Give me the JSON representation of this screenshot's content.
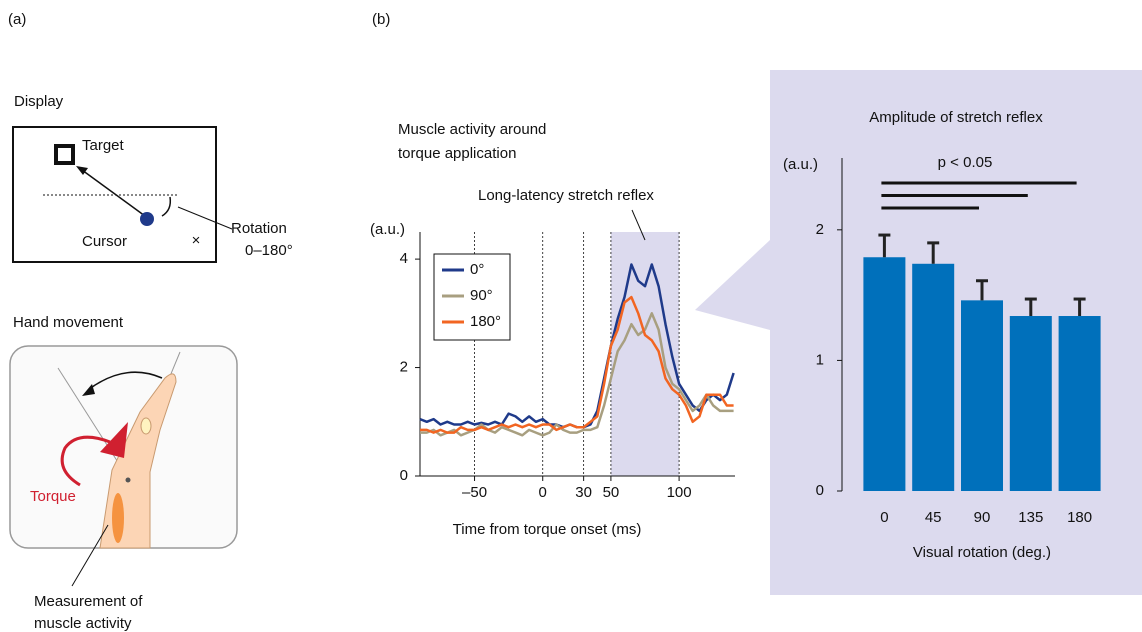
{
  "panel_labels": [
    "(a)",
    "(b)"
  ],
  "display": {
    "title": "Display",
    "target": "Target",
    "cursor": "Cursor",
    "rotation": [
      "Rotation",
      "0–180°"
    ]
  },
  "hand": {
    "title": "Hand movement",
    "torque": "Torque",
    "measurement": [
      "Measurement of",
      "muscle activity"
    ]
  },
  "chart_data": [
    {
      "type": "line",
      "title": [
        "Muscle activity around",
        "torque application"
      ],
      "annotation": "Long-latency stretch reflex",
      "highlight_range": [
        50,
        100
      ],
      "y_label": "(a.u.)",
      "x_label": "Time from torque onset (ms)",
      "xlim": [
        -90,
        141
      ],
      "ylim": [
        0,
        4.5
      ],
      "xticks": [
        {
          "value": -50,
          "label": "–50"
        },
        0,
        30,
        50,
        100
      ],
      "yticks": [
        0,
        2,
        4
      ],
      "vertical_grid": true,
      "legend": "upper left",
      "x": [
        -90,
        -85,
        -80,
        -75,
        -70,
        -65,
        -60,
        -55,
        -50,
        -45,
        -40,
        -35,
        -30,
        -25,
        -20,
        -15,
        -10,
        -5,
        0,
        5,
        10,
        15,
        20,
        25,
        30,
        35,
        40,
        45,
        50,
        55,
        60,
        65,
        70,
        75,
        80,
        85,
        90,
        95,
        100,
        105,
        110,
        115,
        120,
        125,
        130,
        135,
        140
      ],
      "series": [
        {
          "name": "0°",
          "color": "#1f3a8a",
          "values": [
            1.05,
            1.0,
            1.05,
            0.95,
            1.0,
            0.95,
            0.95,
            1.0,
            0.95,
            0.98,
            0.95,
            1.0,
            0.95,
            1.15,
            1.1,
            1.0,
            1.1,
            1.0,
            1.05,
            0.95,
            0.95,
            0.9,
            0.95,
            0.9,
            0.9,
            0.95,
            1.2,
            1.8,
            2.4,
            2.9,
            3.3,
            3.9,
            3.6,
            3.5,
            3.9,
            3.5,
            2.8,
            2.2,
            1.7,
            1.5,
            1.3,
            1.2,
            1.4,
            1.5,
            1.4,
            1.5,
            1.9
          ]
        },
        {
          "name": "90°",
          "color": "#a89f80",
          "values": [
            0.8,
            0.8,
            0.85,
            0.75,
            0.8,
            0.85,
            0.75,
            0.8,
            0.85,
            0.95,
            0.85,
            0.8,
            0.9,
            0.85,
            0.8,
            0.75,
            0.85,
            0.8,
            0.75,
            0.8,
            0.95,
            0.85,
            0.8,
            0.8,
            0.85,
            0.85,
            0.9,
            1.3,
            1.8,
            2.3,
            2.5,
            2.8,
            2.6,
            2.7,
            3.0,
            2.7,
            2.0,
            1.7,
            1.6,
            1.4,
            1.2,
            1.3,
            1.5,
            1.3,
            1.2,
            1.2,
            1.2
          ]
        },
        {
          "name": "180°",
          "color": "#f26522",
          "values": [
            0.85,
            0.85,
            0.8,
            0.85,
            0.8,
            0.8,
            0.9,
            0.85,
            0.85,
            0.9,
            0.85,
            0.9,
            0.95,
            0.9,
            0.95,
            0.9,
            0.95,
            0.9,
            0.95,
            0.95,
            0.85,
            0.9,
            0.95,
            0.9,
            0.9,
            1.0,
            1.1,
            1.7,
            2.4,
            2.7,
            3.2,
            3.3,
            3.0,
            2.6,
            2.5,
            2.3,
            1.8,
            1.6,
            1.5,
            1.3,
            1.0,
            1.1,
            1.5,
            1.5,
            1.5,
            1.3,
            1.3
          ]
        }
      ]
    },
    {
      "type": "bar",
      "title": "Amplitude of stretch reflex",
      "y_label": "(a.u.)",
      "x_label": "Visual rotation (deg.)",
      "categories": [
        "0",
        "45",
        "90",
        "135",
        "180"
      ],
      "values": [
        1.79,
        1.74,
        1.46,
        1.34,
        1.34
      ],
      "errors": [
        0.17,
        0.16,
        0.15,
        0.13,
        0.13
      ],
      "color": "#0070bb",
      "ylim": [
        0,
        2.55
      ],
      "yticks": [
        0,
        1,
        2
      ],
      "significance": {
        "label": "p < 0.05",
        "pairs": [
          [
            "0",
            "180"
          ],
          [
            "0",
            "135"
          ],
          [
            "0",
            "90"
          ]
        ]
      }
    }
  ]
}
